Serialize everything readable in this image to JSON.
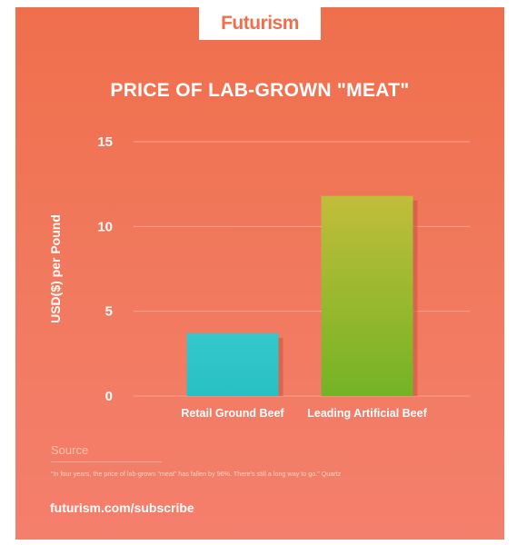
{
  "brand": {
    "logo_text": "Futurism"
  },
  "chart_data": {
    "type": "bar",
    "title": "PRICE OF LAB-GROWN \"MEAT\"",
    "xlabel": "",
    "ylabel": "USD($) per Pound",
    "categories": [
      "Retail Ground Beef",
      "Leading Artificial Beef"
    ],
    "values": [
      3.7,
      11.8
    ],
    "bar_colors": [
      "#2ec5c8",
      "#8cbc2a"
    ],
    "yticks": [
      0,
      5,
      10,
      15
    ],
    "ytick_labels": [
      "0",
      "5",
      "10",
      "15"
    ],
    "ylim": [
      0,
      15
    ],
    "grid": true,
    "legend": "none"
  },
  "footer": {
    "source_label": "Source",
    "quote": "“In four years, the price of lab-grown “meat” has fallen by 96%. There's still a long way to go.” Quartz",
    "subscribe": "futurism.com/subscribe"
  },
  "colors": {
    "background": "#ef6f4c",
    "gridline": "#f6a48f",
    "text": "#ffffff"
  }
}
